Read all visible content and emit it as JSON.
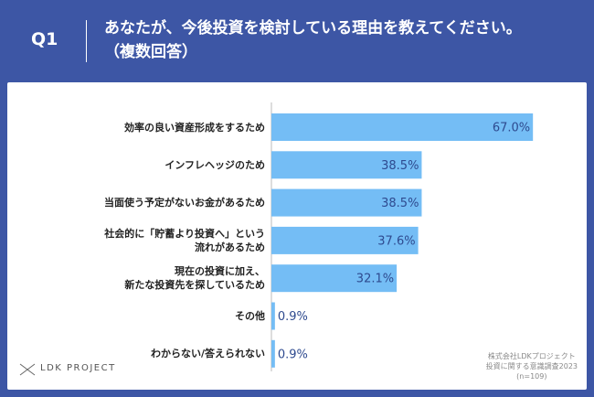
{
  "chart_data": {
    "type": "barh",
    "question_label": "Q1",
    "title": "あなたが、今後投資を検討している理由を教えてください。\n（複数回答）",
    "categories": [
      "効率の良い資産形成をするため",
      "インフレヘッジのため",
      "当面使う予定がないお金があるため",
      "社会的に「貯蓄より投資へ」という\n流れがあるため",
      "現在の投資に加え、\n新たな投資先を探しているため",
      "その他",
      "わからない/答えられない"
    ],
    "values": [
      67.0,
      38.5,
      38.5,
      37.6,
      32.1,
      0.9,
      0.9
    ],
    "value_labels": [
      "67.0%",
      "38.5%",
      "38.5%",
      "37.6%",
      "32.1%",
      "0.9%",
      "0.9%"
    ],
    "color": "#74bdf5",
    "xlim": [
      0,
      70
    ],
    "brand": "LDK PROJECT",
    "source": [
      "株式会社LDKプロジェクト",
      "投資に関する意識調査2023",
      "(n=109)"
    ]
  }
}
